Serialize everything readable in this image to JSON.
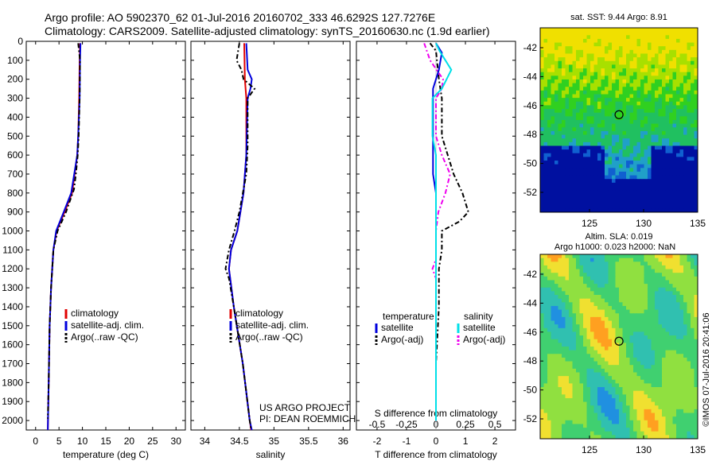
{
  "header": {
    "line1": "Argo profile: AO 5902370_62 01-Jul-2016 20160702_333 46.6292S 127.7276E",
    "line2": "Climatology: CARS2009. Satellite-adjusted climatology: synTS_20160630.nc (1.9d earlier)"
  },
  "depth_ticks": [
    0,
    100,
    200,
    300,
    400,
    500,
    600,
    700,
    800,
    900,
    1000,
    1100,
    1200,
    1300,
    1400,
    1500,
    1600,
    1700,
    1800,
    1900,
    2000
  ],
  "colors": {
    "climatology": "#e00000",
    "satellite": "#0000dd",
    "argo": "#000000",
    "sal_sat": "#00e0e8",
    "sal_argo": "#ee00ee"
  },
  "chart_data": [
    {
      "type": "line",
      "xlabel": "temperature (deg C)",
      "xlim": [
        -2,
        32
      ],
      "ylim": [
        0,
        2050
      ],
      "xticks": [
        0,
        5,
        10,
        15,
        20,
        25,
        30
      ],
      "legend": [
        "climatology",
        "satellite-adj. clim.",
        "Argo(..raw -QC)"
      ],
      "series": [
        {
          "name": "climatology",
          "values": [
            [
              9.5,
              10
            ],
            [
              9.4,
              100
            ],
            [
              9.3,
              300
            ],
            [
              9.1,
              500
            ],
            [
              8.9,
              600
            ],
            [
              7.8,
              800
            ],
            [
              6.2,
              900
            ],
            [
              4.5,
              1000
            ],
            [
              3.8,
              1100
            ],
            [
              3.3,
              1300
            ],
            [
              3.0,
              1500
            ],
            [
              2.8,
              1800
            ],
            [
              2.6,
              2050
            ]
          ]
        },
        {
          "name": "satellite-adj. clim.",
          "values": [
            [
              9.6,
              10
            ],
            [
              9.5,
              100
            ],
            [
              9.4,
              300
            ],
            [
              9.1,
              500
            ],
            [
              8.9,
              600
            ],
            [
              7.6,
              800
            ],
            [
              6.0,
              900
            ],
            [
              4.4,
              1000
            ],
            [
              3.8,
              1100
            ],
            [
              3.3,
              1300
            ],
            [
              3.0,
              1500
            ],
            [
              2.8,
              1800
            ],
            [
              2.6,
              2050
            ]
          ]
        },
        {
          "name": "Argo(..raw -QC)",
          "values": [
            [
              9.1,
              10
            ],
            [
              9.5,
              100
            ],
            [
              9.4,
              300
            ],
            [
              9.2,
              500
            ],
            [
              9.0,
              600
            ],
            [
              8.6,
              700
            ],
            [
              8.2,
              780
            ],
            [
              6.5,
              900
            ],
            [
              4.7,
              1000
            ],
            [
              3.8,
              1100
            ],
            [
              3.3,
              1300
            ],
            [
              3.0,
              1500
            ],
            [
              2.8,
              1800
            ],
            [
              2.6,
              1990
            ]
          ]
        }
      ]
    },
    {
      "type": "line",
      "xlabel": "salinity",
      "xlim": [
        33.8,
        36.1
      ],
      "ylim": [
        0,
        2050
      ],
      "xticks": [
        34,
        34.5,
        35,
        35.5,
        36
      ],
      "legend": [
        "climatology",
        "satellite-adj. clim.",
        "Argo(..raw -QC)"
      ],
      "series": [
        {
          "name": "climatology",
          "values": [
            [
              34.57,
              10
            ],
            [
              34.58,
              200
            ],
            [
              34.6,
              300
            ],
            [
              34.6,
              600
            ],
            [
              34.56,
              800
            ],
            [
              34.47,
              1000
            ],
            [
              34.38,
              1100
            ],
            [
              34.35,
              1200
            ],
            [
              34.42,
              1400
            ],
            [
              34.55,
              1700
            ],
            [
              34.65,
              2000
            ],
            [
              34.67,
              2050
            ]
          ]
        },
        {
          "name": "satellite-adj. clim.",
          "values": [
            [
              34.6,
              10
            ],
            [
              34.62,
              150
            ],
            [
              34.68,
              200
            ],
            [
              34.66,
              250
            ],
            [
              34.62,
              300
            ],
            [
              34.6,
              600
            ],
            [
              34.56,
              800
            ],
            [
              34.47,
              1000
            ],
            [
              34.38,
              1100
            ],
            [
              34.35,
              1200
            ],
            [
              34.42,
              1400
            ],
            [
              34.55,
              1700
            ],
            [
              34.65,
              2000
            ],
            [
              34.68,
              2050
            ]
          ]
        },
        {
          "name": "Argo(..raw -QC)",
          "values": [
            [
              34.5,
              10
            ],
            [
              34.46,
              100
            ],
            [
              34.53,
              150
            ],
            [
              34.56,
              200
            ],
            [
              34.72,
              250
            ],
            [
              34.62,
              300
            ],
            [
              34.62,
              550
            ],
            [
              34.6,
              700
            ],
            [
              34.5,
              900
            ],
            [
              34.43,
              1000
            ],
            [
              34.35,
              1100
            ],
            [
              34.3,
              1200
            ],
            [
              34.35,
              1250
            ],
            [
              34.42,
              1400
            ],
            [
              34.55,
              1700
            ],
            [
              34.65,
              2000
            ],
            [
              34.67,
              2050
            ]
          ]
        }
      ]
    },
    {
      "type": "line",
      "xlabel": "T difference from climatology",
      "x2label": "S difference from climatology",
      "xlim": [
        -2.7,
        2.7
      ],
      "ylim": [
        0,
        2050
      ],
      "xticks": [
        -2,
        -1,
        0,
        1,
        2
      ],
      "x2ticks": [
        -0.5,
        -0.25,
        0,
        0.25,
        0.5
      ],
      "legend_left_title": "temperature",
      "legend_right_title": "salinity",
      "legend_left": [
        "satellite",
        "Argo(-adj)"
      ],
      "legend_right": [
        "satellite",
        "Argo(-adj)"
      ],
      "series": [
        {
          "name": "T satellite",
          "values": [
            [
              0,
              10
            ],
            [
              0.2,
              60
            ],
            [
              0.1,
              150
            ],
            [
              -0.1,
              250
            ],
            [
              -0.1,
              350
            ],
            [
              -0.1,
              500
            ],
            [
              -0.1,
              600
            ],
            [
              -0.1,
              700
            ],
            [
              0,
              800
            ],
            [
              0,
              1000
            ],
            [
              0,
              1300
            ],
            [
              0,
              1700
            ],
            [
              0,
              2000
            ]
          ]
        },
        {
          "name": "T Argo",
          "values": [
            [
              -0.2,
              10
            ],
            [
              0,
              50
            ],
            [
              0.1,
              200
            ],
            [
              0.2,
              300
            ],
            [
              0.2,
              500
            ],
            [
              0.4,
              600
            ],
            [
              0.6,
              700
            ],
            [
              0.9,
              800
            ],
            [
              1.1,
              900
            ],
            [
              0.8,
              950
            ],
            [
              0.2,
              1000
            ],
            [
              0.2,
              1100
            ],
            [
              0.1,
              1200
            ],
            [
              0.1,
              1400
            ],
            [
              0,
              1700
            ],
            [
              0,
              1990
            ]
          ]
        },
        {
          "name": "S satellite",
          "values": [
            [
              0,
              10
            ],
            [
              0.03,
              50
            ],
            [
              0.13,
              150
            ],
            [
              0.05,
              250
            ],
            [
              -0.03,
              300
            ],
            [
              -0.03,
              500
            ],
            [
              0,
              600
            ],
            [
              0,
              800
            ],
            [
              0,
              1000
            ],
            [
              0,
              1200
            ],
            [
              0,
              1500
            ],
            [
              0,
              1700
            ],
            [
              0,
              2000
            ]
          ]
        },
        {
          "name": "S Argo",
          "values": [
            [
              -0.1,
              10
            ],
            [
              -0.05,
              100
            ],
            [
              0.06,
              200
            ],
            [
              0.05,
              250
            ],
            [
              0,
              300
            ],
            [
              0,
              500
            ],
            [
              0.05,
              600
            ],
            [
              0.12,
              700
            ],
            [
              0.08,
              800
            ],
            [
              0.02,
              900
            ],
            [
              0,
              1000
            ],
            [
              0,
              1150
            ],
            [
              -0.03,
              1200
            ],
            [
              0,
              1250
            ],
            [
              0,
              1500
            ],
            [
              0,
              1700
            ],
            [
              0,
              1990
            ]
          ]
        }
      ]
    }
  ],
  "panels": {
    "sst_title": "sat. SST: 9.44 Argo: 8.91",
    "sla_title1": "Altim. SLA: 0.019",
    "sla_title2": "Argo h1000: 0.023 h2000: NaN",
    "lat_ticks": [
      "-42",
      "-44",
      "-46",
      "-48",
      "-50",
      "-52"
    ],
    "lon_ticks": [
      "125",
      "130",
      "135"
    ]
  },
  "annotation": {
    "project": "US ARGO PROJECT",
    "pi": "PI: DEAN ROEMMICH"
  },
  "credit": "©IMOS 07-Jul-2016 20:41:06"
}
